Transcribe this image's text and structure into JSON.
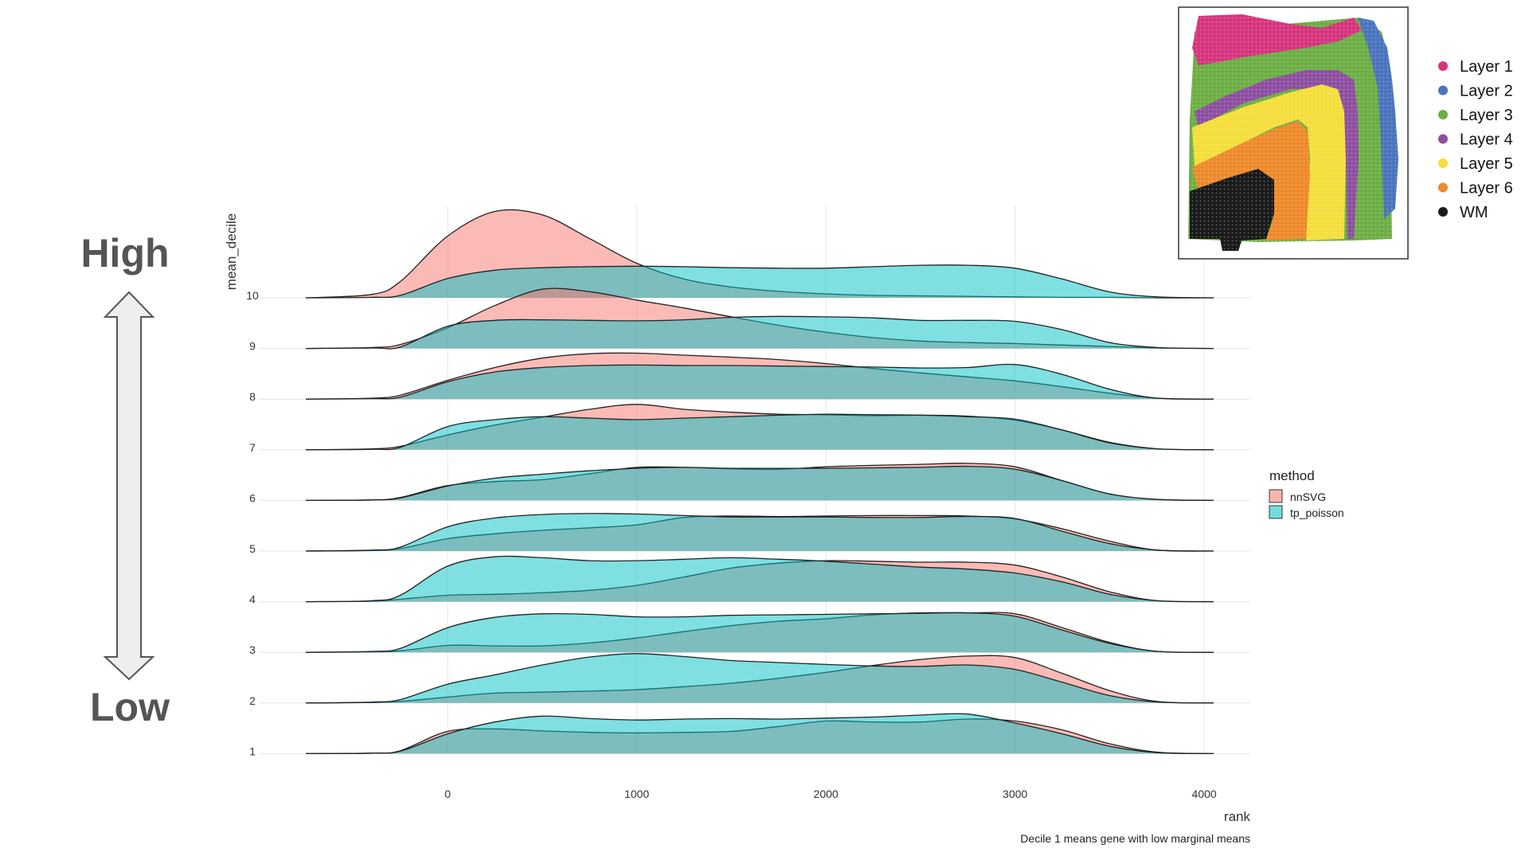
{
  "side_labels": {
    "high": "High",
    "low": "Low"
  },
  "chart_data": {
    "type": "area",
    "subtype": "ridgeline",
    "x_label": "rank",
    "y_label": "mean_decile",
    "caption": "Decile 1 means gene with low marginal means",
    "x_ticks": [
      0,
      1000,
      2000,
      3000,
      4000
    ],
    "x_range": [
      -750,
      4050
    ],
    "y_categories": [
      "1",
      "2",
      "3",
      "4",
      "5",
      "6",
      "7",
      "8",
      "9",
      "10"
    ],
    "grid": true,
    "legend": {
      "title": "method",
      "position": "right",
      "items": [
        {
          "name": "nnSVG",
          "color": "#F8766D"
        },
        {
          "name": "tp_poisson",
          "color": "#00BFC4"
        }
      ]
    },
    "density_x": [
      -750,
      -400,
      -250,
      0,
      250,
      500,
      750,
      1000,
      1250,
      1500,
      1750,
      2000,
      2250,
      2500,
      2750,
      3000,
      3250,
      3500,
      3750,
      4050
    ],
    "series": [
      {
        "name": "nnSVG",
        "color": "#F8766D",
        "ridges": [
          {
            "decile": "1",
            "density": [
              0,
              0.01,
              0.06,
              0.45,
              0.5,
              0.46,
              0.43,
              0.42,
              0.43,
              0.45,
              0.55,
              0.66,
              0.64,
              0.64,
              0.7,
              0.66,
              0.48,
              0.2,
              0.03,
              0
            ]
          },
          {
            "decile": "2",
            "density": [
              0,
              0.01,
              0.03,
              0.12,
              0.2,
              0.22,
              0.24,
              0.27,
              0.33,
              0.4,
              0.5,
              0.62,
              0.76,
              0.88,
              0.95,
              0.92,
              0.6,
              0.25,
              0.03,
              0
            ]
          },
          {
            "decile": "3",
            "density": [
              0,
              0.01,
              0.03,
              0.14,
              0.13,
              0.13,
              0.19,
              0.29,
              0.42,
              0.54,
              0.63,
              0.68,
              0.76,
              0.8,
              0.8,
              0.78,
              0.5,
              0.2,
              0.02,
              0
            ]
          },
          {
            "decile": "4",
            "density": [
              0,
              0.01,
              0.05,
              0.13,
              0.15,
              0.18,
              0.23,
              0.33,
              0.5,
              0.68,
              0.78,
              0.83,
              0.82,
              0.8,
              0.8,
              0.74,
              0.5,
              0.2,
              0.02,
              0
            ]
          },
          {
            "decile": "5",
            "density": [
              0,
              0.01,
              0.05,
              0.25,
              0.35,
              0.42,
              0.47,
              0.53,
              0.68,
              0.71,
              0.7,
              0.71,
              0.72,
              0.72,
              0.71,
              0.65,
              0.45,
              0.2,
              0.02,
              0
            ]
          },
          {
            "decile": "6",
            "density": [
              0,
              0.01,
              0.06,
              0.3,
              0.38,
              0.42,
              0.54,
              0.67,
              0.67,
              0.64,
              0.63,
              0.68,
              0.71,
              0.73,
              0.75,
              0.68,
              0.4,
              0.13,
              0.02,
              0
            ]
          },
          {
            "decile": "7",
            "density": [
              0,
              0.02,
              0.07,
              0.3,
              0.5,
              0.66,
              0.82,
              0.92,
              0.82,
              0.76,
              0.72,
              0.71,
              0.69,
              0.7,
              0.68,
              0.6,
              0.4,
              0.15,
              0.02,
              0
            ]
          },
          {
            "decile": "8",
            "density": [
              0,
              0.02,
              0.08,
              0.38,
              0.64,
              0.83,
              0.92,
              0.93,
              0.89,
              0.85,
              0.8,
              0.72,
              0.62,
              0.53,
              0.45,
              0.37,
              0.25,
              0.12,
              0.02,
              0
            ]
          },
          {
            "decile": "9",
            "density": [
              0,
              0.02,
              0.08,
              0.42,
              0.87,
              1.2,
              1.15,
              0.98,
              0.82,
              0.64,
              0.47,
              0.33,
              0.22,
              0.15,
              0.12,
              0.1,
              0.07,
              0.04,
              0.01,
              0
            ]
          },
          {
            "decile": "10",
            "density": [
              0,
              0.07,
              0.33,
              1.25,
              1.75,
              1.68,
              1.2,
              0.7,
              0.38,
              0.22,
              0.13,
              0.08,
              0.05,
              0.04,
              0.03,
              0.02,
              0.01,
              0.01,
              0,
              0
            ]
          }
        ]
      },
      {
        "name": "tp_poisson",
        "color": "#00BFC4",
        "ridges": [
          {
            "decile": "1",
            "density": [
              0,
              0.01,
              0.05,
              0.4,
              0.64,
              0.76,
              0.71,
              0.68,
              0.7,
              0.71,
              0.7,
              0.72,
              0.74,
              0.78,
              0.8,
              0.62,
              0.4,
              0.15,
              0.02,
              0
            ]
          },
          {
            "decile": "2",
            "density": [
              0,
              0.02,
              0.07,
              0.38,
              0.57,
              0.77,
              0.93,
              1.0,
              0.94,
              0.86,
              0.82,
              0.78,
              0.75,
              0.74,
              0.77,
              0.68,
              0.42,
              0.15,
              0.02,
              0
            ]
          },
          {
            "decile": "3",
            "density": [
              0,
              0.02,
              0.08,
              0.5,
              0.71,
              0.78,
              0.77,
              0.72,
              0.72,
              0.75,
              0.76,
              0.77,
              0.78,
              0.79,
              0.8,
              0.73,
              0.45,
              0.18,
              0.02,
              0
            ]
          },
          {
            "decile": "4",
            "density": [
              0,
              0.02,
              0.13,
              0.72,
              0.91,
              0.89,
              0.83,
              0.83,
              0.86,
              0.89,
              0.86,
              0.82,
              0.76,
              0.7,
              0.66,
              0.58,
              0.4,
              0.15,
              0.02,
              0
            ]
          },
          {
            "decile": "5",
            "density": [
              0,
              0.02,
              0.08,
              0.49,
              0.67,
              0.74,
              0.76,
              0.75,
              0.72,
              0.69,
              0.69,
              0.69,
              0.68,
              0.68,
              0.7,
              0.66,
              0.4,
              0.15,
              0.02,
              0
            ]
          },
          {
            "decile": "6",
            "density": [
              0,
              0.01,
              0.05,
              0.29,
              0.45,
              0.53,
              0.6,
              0.65,
              0.67,
              0.65,
              0.65,
              0.65,
              0.66,
              0.67,
              0.69,
              0.63,
              0.4,
              0.13,
              0.02,
              0
            ]
          },
          {
            "decile": "7",
            "density": [
              0,
              0.01,
              0.05,
              0.47,
              0.61,
              0.67,
              0.64,
              0.61,
              0.64,
              0.67,
              0.7,
              0.72,
              0.71,
              0.7,
              0.67,
              0.62,
              0.4,
              0.14,
              0.02,
              0
            ]
          },
          {
            "decile": "8",
            "density": [
              0,
              0.01,
              0.04,
              0.35,
              0.55,
              0.64,
              0.68,
              0.69,
              0.68,
              0.68,
              0.67,
              0.66,
              0.65,
              0.63,
              0.64,
              0.7,
              0.5,
              0.2,
              0.02,
              0
            ]
          },
          {
            "decile": "9",
            "density": [
              0,
              0.01,
              0.03,
              0.45,
              0.57,
              0.58,
              0.57,
              0.56,
              0.58,
              0.63,
              0.65,
              0.64,
              0.62,
              0.57,
              0.57,
              0.55,
              0.38,
              0.12,
              0.02,
              0
            ]
          },
          {
            "decile": "10",
            "density": [
              0,
              0.01,
              0.05,
              0.39,
              0.56,
              0.61,
              0.63,
              0.64,
              0.63,
              0.61,
              0.6,
              0.6,
              0.63,
              0.66,
              0.66,
              0.6,
              0.38,
              0.12,
              0.02,
              0
            ]
          }
        ]
      }
    ]
  },
  "inset": {
    "legend": [
      {
        "label": "Layer 1",
        "color": "#D6357E"
      },
      {
        "label": "Layer 2",
        "color": "#4A74BC"
      },
      {
        "label": "Layer 3",
        "color": "#6DAE45"
      },
      {
        "label": "Layer 4",
        "color": "#8E4FA1"
      },
      {
        "label": "Layer 5",
        "color": "#F5DE3C"
      },
      {
        "label": "Layer 6",
        "color": "#EE8A2B"
      },
      {
        "label": "WM",
        "color": "#1A1A1A"
      }
    ]
  }
}
